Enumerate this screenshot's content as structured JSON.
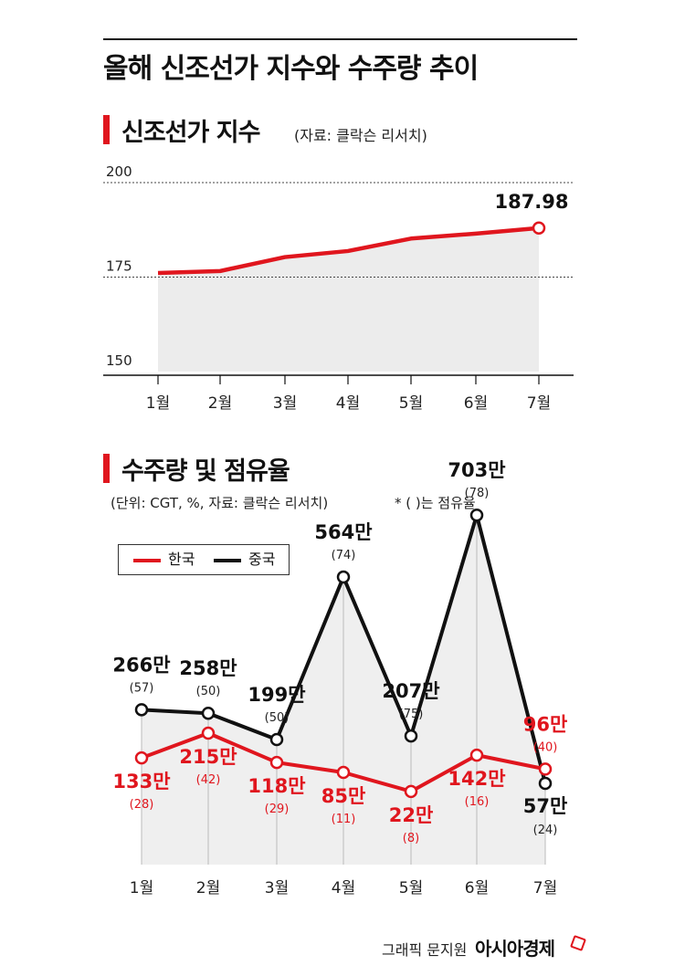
{
  "title": "올해 신조선가 지수와 수주량 추이",
  "credit": "그래픽 문지원",
  "brand": "아시아경제",
  "colors": {
    "accent": "#e0161e",
    "china": "#111111",
    "area": "#ececec"
  },
  "chart_data": [
    {
      "type": "line",
      "title": "신조선가 지수",
      "source": "(자료: 클락슨 리서치)",
      "categories": [
        "1월",
        "2월",
        "3월",
        "4월",
        "5월",
        "6월",
        "7월"
      ],
      "series": [
        {
          "values": [
            176.1,
            176.6,
            180.3,
            181.9,
            185.2,
            186.5,
            187.98
          ],
          "color": "#e0161e"
        }
      ],
      "ylim": [
        150,
        200
      ],
      "yticks": [
        "200",
        "175",
        "150"
      ],
      "annotation": "187.98",
      "grid": true
    },
    {
      "type": "line",
      "title": "수주량 및 점유율",
      "note": "(단위: CGT, %, 자료: 클락슨 리서치)",
      "note2": "* ( )는 점유율",
      "categories": [
        "1월",
        "2월",
        "3월",
        "4월",
        "5월",
        "6월",
        "7월"
      ],
      "legend": [
        "한국",
        "중국"
      ],
      "series": [
        {
          "name": "한국",
          "color": "#e0161e",
          "values": [
            133,
            215,
            118,
            85,
            22,
            142,
            96
          ],
          "labels": [
            "133만",
            "215만",
            "118만",
            "85만",
            "22만",
            "142만",
            "96만"
          ],
          "shares": [
            "(28)",
            "(42)",
            "(29)",
            "(11)",
            "(8)",
            "(16)",
            "(40)"
          ]
        },
        {
          "name": "중국",
          "color": "#111111",
          "values": [
            266,
            258,
            199,
            564,
            207,
            703,
            57
          ],
          "labels": [
            "266만",
            "258만",
            "199만",
            "564만",
            "207만",
            "703만",
            "57만"
          ],
          "shares": [
            "(57)",
            "(50)",
            "(50)",
            "(74)",
            "(75)",
            "(78)",
            "(24)"
          ]
        }
      ]
    }
  ]
}
